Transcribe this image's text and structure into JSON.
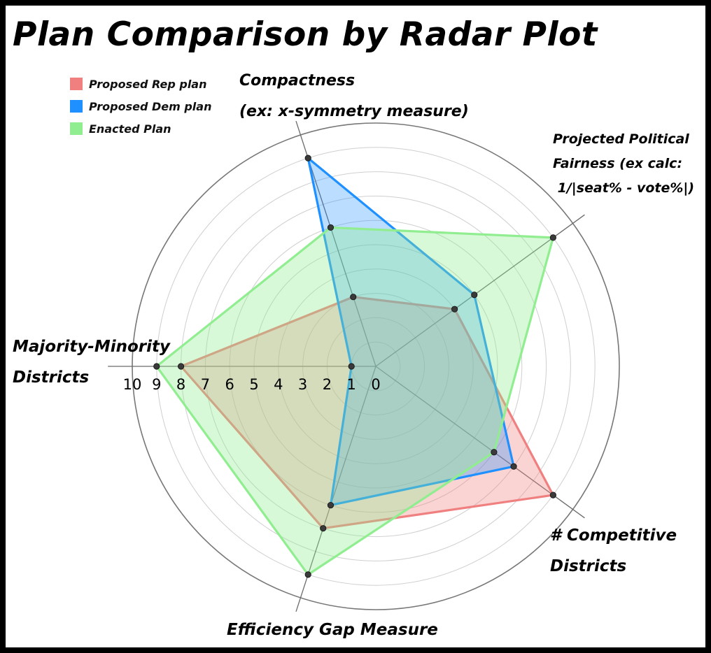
{
  "title": "Plan Comparison by Radar Plot",
  "legend": [
    {
      "label": "Proposed Rep plan",
      "color": "#f08080"
    },
    {
      "label": "Proposed Dem plan",
      "color": "#1e90ff"
    },
    {
      "label": "Enacted Plan",
      "color": "#90ee90"
    }
  ],
  "axis_labels": {
    "compactness": [
      "Compactness",
      "(ex: x-symmetry measure)"
    ],
    "fairness": [
      "Projected Political",
      "Fairness  (ex calc:",
      " 1/|seat% - vote%|)"
    ],
    "competitive": [
      "# Competitive",
      "Districts"
    ],
    "efficiency": [
      "Efficiency Gap Measure"
    ],
    "majority": [
      "Majority-Minority",
      "Districts"
    ]
  },
  "chart_data": {
    "type": "radar",
    "title": "Plan Comparison by Radar Plot",
    "axes": [
      "Compactness (ex: x-symmetry measure)",
      "Projected Political Fairness (ex calc: 1/|seat% - vote%|)",
      "# Competitive Districts",
      "Efficiency Gap Measure",
      "Majority-Minority Districts"
    ],
    "range": [
      0,
      10
    ],
    "ticks": [
      "0",
      "1",
      "2",
      "3",
      "4",
      "5",
      "6",
      "7",
      "8",
      "9",
      "10"
    ],
    "legend_position": "top-left",
    "series": [
      {
        "name": "Proposed Rep plan",
        "color": "#f08080",
        "values": [
          3,
          4,
          9,
          7,
          8
        ]
      },
      {
        "name": "Proposed Dem plan",
        "color": "#1e90ff",
        "values": [
          9,
          5,
          7,
          6,
          1
        ]
      },
      {
        "name": "Enacted Plan",
        "color": "#90ee90",
        "values": [
          6,
          9,
          6,
          9,
          9
        ]
      }
    ]
  }
}
